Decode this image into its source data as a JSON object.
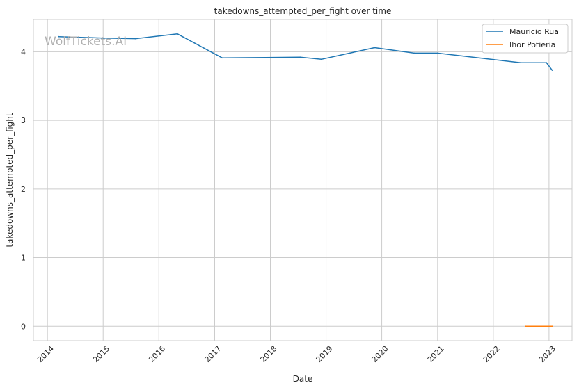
{
  "chart_data": {
    "type": "line",
    "title": "takedowns_attempted_per_fight over time",
    "xlabel": "Date",
    "ylabel": "takedowns_attempted_per_fight",
    "watermark": "WolfTickets.AI",
    "x_ticks": [
      "2014",
      "2015",
      "2016",
      "2017",
      "2018",
      "2019",
      "2020",
      "2021",
      "2022",
      "2023"
    ],
    "y_ticks": [
      0,
      1,
      2,
      3,
      4
    ],
    "xlim": [
      "2013-10-01",
      "2023-06-01"
    ],
    "ylim": [
      -0.21,
      4.47
    ],
    "grid": true,
    "legend_position": "top-right",
    "series": [
      {
        "name": "Mauricio Rua",
        "color": "#1f77b4",
        "points": [
          {
            "x": "2014-03-15",
            "y": 4.22
          },
          {
            "x": "2015-01-01",
            "y": 4.2
          },
          {
            "x": "2015-08-01",
            "y": 4.19
          },
          {
            "x": "2016-05-01",
            "y": 4.26
          },
          {
            "x": "2017-02-20",
            "y": 3.91
          },
          {
            "x": "2018-07-15",
            "y": 3.92
          },
          {
            "x": "2018-12-01",
            "y": 3.89
          },
          {
            "x": "2019-11-15",
            "y": 4.06
          },
          {
            "x": "2020-08-01",
            "y": 3.98
          },
          {
            "x": "2021-01-01",
            "y": 3.98
          },
          {
            "x": "2022-07-01",
            "y": 3.84
          },
          {
            "x": "2022-12-15",
            "y": 3.84
          },
          {
            "x": "2023-01-22",
            "y": 3.73
          }
        ]
      },
      {
        "name": "Ihor Potieria",
        "color": "#ff7f0e",
        "points": [
          {
            "x": "2022-08-01",
            "y": 0
          },
          {
            "x": "2023-01-22",
            "y": 0
          }
        ]
      }
    ]
  }
}
